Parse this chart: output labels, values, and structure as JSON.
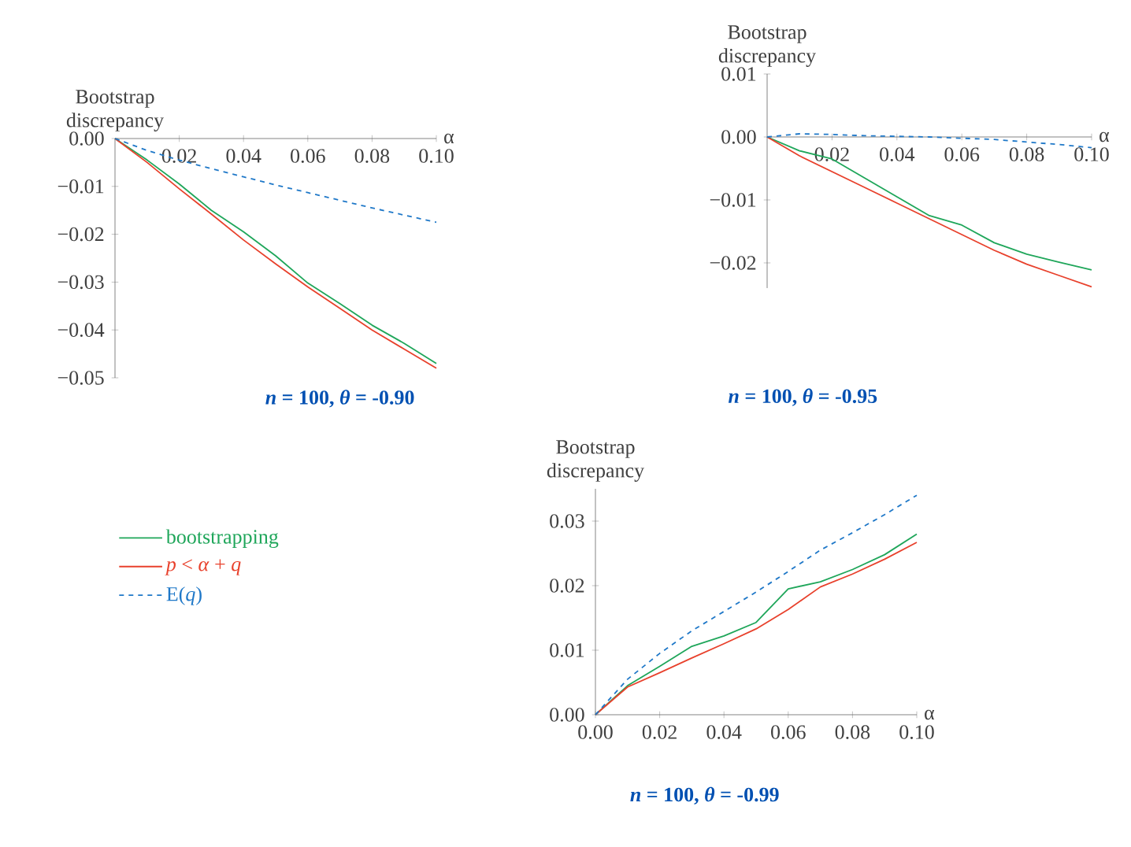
{
  "chart_data": [
    {
      "type": "line",
      "title": "*n* =  100, *θ* =  -0.90",
      "xlabel": "α",
      "ylabel": "Bootstrap discrepancy",
      "x": [
        0,
        0.01,
        0.02,
        0.03,
        0.04,
        0.05,
        0.06,
        0.07,
        0.08,
        0.09,
        0.1
      ],
      "xlim": [
        0,
        0.1
      ],
      "ylim": [
        -0.05,
        0
      ],
      "xticks": [
        {
          "value": 0.02,
          "label": "0.02"
        },
        {
          "value": 0.04,
          "label": "0.04"
        },
        {
          "value": 0.06,
          "label": "0.06"
        },
        {
          "value": 0.08,
          "label": "0.08"
        },
        {
          "value": 0.1,
          "label": "0.10"
        }
      ],
      "yticks": [
        {
          "value": -0.05,
          "label": "−0.05"
        },
        {
          "value": -0.04,
          "label": "−0.04"
        },
        {
          "value": -0.03,
          "label": "−0.03"
        },
        {
          "value": -0.02,
          "label": "−0.02"
        },
        {
          "value": -0.01,
          "label": "−0.01"
        },
        {
          "value": 0,
          "label": "0.00"
        }
      ],
      "series": [
        {
          "color": "#1fa65a",
          "line_style": "solid",
          "values": [
            0,
            -0.0045,
            -0.0095,
            -0.015,
            -0.0195,
            -0.0245,
            -0.0302,
            -0.0345,
            -0.039,
            -0.0428,
            -0.047
          ]
        },
        {
          "color": "#e8412c",
          "line_style": "solid",
          "values": [
            0,
            -0.005,
            -0.0105,
            -0.0158,
            -0.0212,
            -0.0262,
            -0.031,
            -0.0355,
            -0.04,
            -0.044,
            -0.048
          ]
        },
        {
          "color": "#1f78c8",
          "line_style": "dashed",
          "values": [
            0,
            -0.0025,
            -0.0045,
            -0.0063,
            -0.008,
            -0.0097,
            -0.0113,
            -0.0129,
            -0.0145,
            -0.016,
            -0.0175
          ]
        }
      ]
    },
    {
      "type": "line",
      "title": "*n* =  100, *θ* =  -0.95",
      "xlabel": "α",
      "ylabel": "Bootstrap discrepancy",
      "x": [
        0,
        0.01,
        0.02,
        0.03,
        0.04,
        0.05,
        0.06,
        0.07,
        0.08,
        0.09,
        0.1
      ],
      "xlim": [
        0,
        0.1
      ],
      "ylim": [
        -0.024,
        0.01
      ],
      "xticks": [
        {
          "value": 0.02,
          "label": "0.02"
        },
        {
          "value": 0.04,
          "label": "0.04"
        },
        {
          "value": 0.06,
          "label": "0.06"
        },
        {
          "value": 0.08,
          "label": "0.08"
        },
        {
          "value": 0.1,
          "label": "0.10"
        }
      ],
      "yticks": [
        {
          "value": -0.02,
          "label": "−0.02"
        },
        {
          "value": -0.01,
          "label": "−0.01"
        },
        {
          "value": 0,
          "label": "0.00"
        },
        {
          "value": 0.01,
          "label": "0.01"
        }
      ],
      "series": [
        {
          "color": "#1fa65a",
          "line_style": "solid",
          "values": [
            0,
            -0.0022,
            -0.0035,
            -0.0065,
            -0.0095,
            -0.0125,
            -0.014,
            -0.0168,
            -0.0186,
            -0.0199,
            -0.0211
          ]
        },
        {
          "color": "#e8412c",
          "line_style": "solid",
          "values": [
            0,
            -0.003,
            -0.0055,
            -0.008,
            -0.0105,
            -0.013,
            -0.0155,
            -0.018,
            -0.0202,
            -0.022,
            -0.0238
          ]
        },
        {
          "color": "#1f78c8",
          "line_style": "dashed",
          "values": [
            0,
            0.0005,
            0.0004,
            0.0002,
            0.0001,
            0,
            -0.0002,
            -0.0004,
            -0.0008,
            -0.0012,
            -0.0017
          ]
        }
      ]
    },
    {
      "type": "line",
      "title": "*n* =  100, *θ* = -0.99",
      "xlabel": "α",
      "ylabel": "Bootstrap discrepancy",
      "legend": "left",
      "x": [
        0,
        0.01,
        0.02,
        0.03,
        0.04,
        0.05,
        0.06,
        0.07,
        0.08,
        0.09,
        0.1
      ],
      "xlim": [
        0,
        0.1
      ],
      "ylim": [
        0,
        0.035
      ],
      "xticks": [
        {
          "value": 0,
          "label": "0.00"
        },
        {
          "value": 0.02,
          "label": "0.02"
        },
        {
          "value": 0.04,
          "label": "0.04"
        },
        {
          "value": 0.06,
          "label": "0.06"
        },
        {
          "value": 0.08,
          "label": "0.08"
        },
        {
          "value": 0.1,
          "label": "0.10"
        }
      ],
      "yticks": [
        {
          "value": 0,
          "label": "0.00"
        },
        {
          "value": 0.01,
          "label": "0.01"
        },
        {
          "value": 0.02,
          "label": "0.02"
        },
        {
          "value": 0.03,
          "label": "0.03"
        }
      ],
      "series": [
        {
          "name": "bootstrapping",
          "color": "#1fa65a",
          "line_style": "solid",
          "values": [
            0,
            0.0045,
            0.0075,
            0.0106,
            0.0122,
            0.0143,
            0.0195,
            0.0206,
            0.0225,
            0.0248,
            0.028
          ]
        },
        {
          "name": "*p* < *α* + *q*",
          "color": "#e8412c",
          "line_style": "solid",
          "values": [
            0,
            0.0043,
            0.0065,
            0.0088,
            0.011,
            0.0133,
            0.0163,
            0.0198,
            0.0218,
            0.0241,
            0.0267
          ]
        },
        {
          "name": "E(*q*)",
          "color": "#1f78c8",
          "line_style": "dashed",
          "values": [
            0,
            0.0055,
            0.0095,
            0.013,
            0.016,
            0.019,
            0.0222,
            0.0255,
            0.0282,
            0.031,
            0.034
          ]
        }
      ]
    }
  ]
}
